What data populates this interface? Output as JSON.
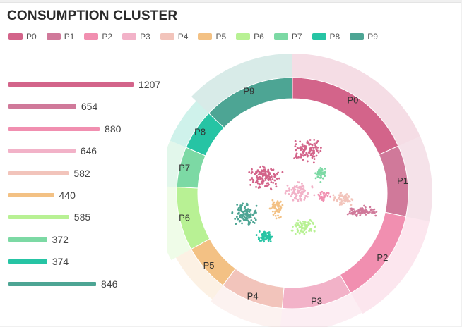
{
  "title": "CONSUMPTION CLUSTER",
  "colors": {
    "P0": "#d3648a",
    "P1": "#d0799a",
    "P2": "#f18fb0",
    "P3": "#f2b2c8",
    "P4": "#f2c4bb",
    "P5": "#f3c184",
    "P6": "#b8f194",
    "P7": "#7cd9a4",
    "P8": "#26c4a4",
    "P9": "#4da594"
  },
  "chart_data": {
    "type": "bar",
    "categories": [
      "P0",
      "P1",
      "P2",
      "P3",
      "P4",
      "P5",
      "P6",
      "P7",
      "P8",
      "P9"
    ],
    "values": [
      1207,
      654,
      880,
      646,
      582,
      440,
      585,
      372,
      374,
      846
    ],
    "legend": [
      "P0",
      "P1",
      "P2",
      "P3",
      "P4",
      "P5",
      "P6",
      "P7",
      "P8",
      "P9"
    ],
    "ring_outer_radius_scale": [
      1.2,
      1.12,
      1.15,
      1.1,
      1.08,
      1.06,
      1.1,
      1.06,
      1.06,
      1.12
    ]
  }
}
